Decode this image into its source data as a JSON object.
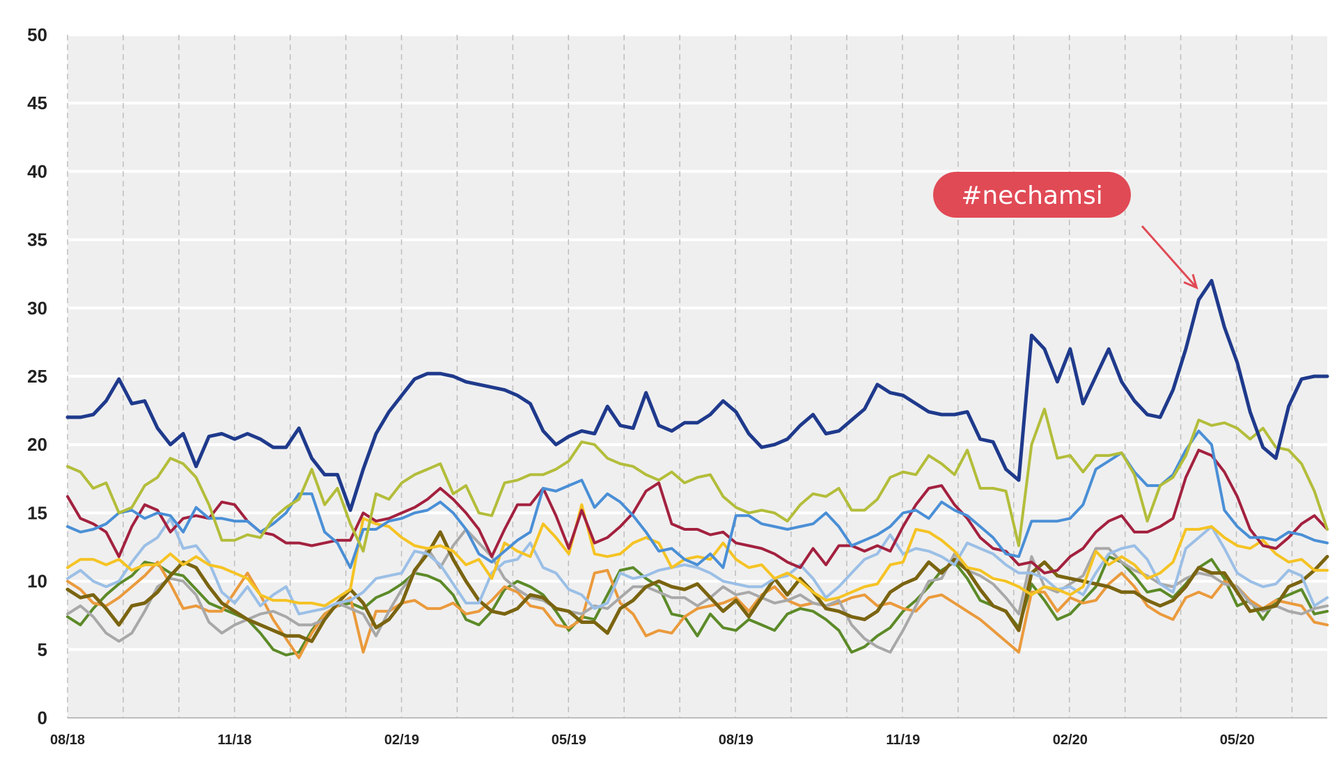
{
  "chart_data": {
    "type": "line",
    "title": "",
    "xlabel": "",
    "ylabel": "",
    "ylim": [
      0,
      50
    ],
    "yticks": [
      "0",
      "5",
      "10",
      "15",
      "20",
      "25",
      "30",
      "35",
      "40",
      "45",
      "50"
    ],
    "xticks": [
      {
        "index": 0,
        "label": "08/18"
      },
      {
        "index": 13,
        "label": "11/18"
      },
      {
        "index": 26,
        "label": "02/19"
      },
      {
        "index": 39,
        "label": "05/19"
      },
      {
        "index": 52,
        "label": "08/19"
      },
      {
        "index": 65,
        "label": "11/19"
      },
      {
        "index": 78,
        "label": "02/20"
      },
      {
        "index": 91,
        "label": "05/20"
      }
    ],
    "grid": {
      "horizontal": "solid",
      "vertical": "dashed",
      "vertical_every": 4.33
    },
    "legend": "none",
    "background": "#efefef",
    "annotation": {
      "text": "#nechamsi",
      "series": "navy",
      "index": 88,
      "value": 32,
      "color": "#e04a55"
    },
    "series": [
      {
        "key": "navy",
        "color": "#1f3a8c",
        "width": 5,
        "values": [
          22.0,
          22.0,
          22.2,
          23.2,
          24.8,
          23.0,
          23.2,
          21.2,
          20.0,
          20.8,
          18.4,
          20.6,
          20.8,
          20.4,
          20.8,
          20.4,
          19.8,
          19.8,
          21.2,
          19.0,
          17.8,
          17.8,
          15.2,
          18.2,
          20.8,
          22.4,
          23.6,
          24.8,
          25.2,
          25.2,
          25.0,
          24.6,
          24.4,
          24.2,
          24.0,
          23.6,
          23.0,
          21.0,
          20.0,
          20.6,
          21.0,
          20.8,
          22.8,
          21.4,
          21.2,
          23.8,
          21.4,
          21.0,
          21.6,
          21.6,
          22.2,
          23.2,
          22.4,
          20.8,
          19.8,
          20.0,
          20.4,
          21.4,
          22.2,
          20.8,
          21.0,
          21.8,
          22.6,
          24.4,
          23.8,
          23.6,
          23.0,
          22.4,
          22.2,
          22.2,
          22.4,
          20.4,
          20.2,
          18.2,
          17.4,
          28.0,
          27.0,
          24.6,
          27.0,
          23.0,
          25.0,
          27.0,
          24.6,
          23.2,
          22.2,
          22.0,
          24.0,
          27.0,
          30.6,
          32.0,
          28.6,
          26.0,
          22.4,
          19.8,
          19.0,
          22.8,
          24.8,
          25.0,
          25.0
        ]
      },
      {
        "key": "olive-green",
        "color": "#b3bd3a",
        "width": 4,
        "values": [
          18.4,
          18.0,
          16.8,
          17.2,
          15.0,
          15.4,
          17.0,
          17.6,
          19.0,
          18.6,
          17.6,
          15.6,
          13.0,
          13.0,
          13.4,
          13.2,
          14.6,
          15.4,
          16.0,
          18.2,
          15.6,
          16.8,
          14.2,
          12.2,
          16.4,
          16.0,
          17.2,
          17.8,
          18.2,
          18.6,
          16.4,
          17.0,
          15.0,
          14.8,
          17.2,
          17.4,
          17.8,
          17.8,
          18.2,
          18.8,
          20.2,
          20.0,
          19.0,
          18.6,
          18.4,
          17.8,
          17.4,
          18.0,
          17.2,
          17.6,
          17.8,
          16.2,
          15.4,
          15.0,
          15.2,
          15.0,
          14.4,
          15.6,
          16.4,
          16.2,
          16.8,
          15.2,
          15.2,
          16.0,
          17.6,
          18.0,
          17.8,
          19.2,
          18.6,
          17.8,
          19.6,
          16.8,
          16.8,
          16.6,
          12.6,
          20.0,
          22.6,
          19.0,
          19.2,
          18.0,
          19.2,
          19.2,
          19.4,
          17.8,
          14.4,
          17.0,
          17.6,
          19.2,
          21.8,
          21.4,
          21.6,
          21.2,
          20.4,
          21.2,
          19.8,
          19.6,
          18.6,
          16.6,
          13.8
        ]
      },
      {
        "key": "blue",
        "color": "#4a8fd6",
        "width": 4,
        "values": [
          14.0,
          13.6,
          13.8,
          14.2,
          15.0,
          15.2,
          14.6,
          15.0,
          14.8,
          13.6,
          15.4,
          14.6,
          14.6,
          14.4,
          14.4,
          13.6,
          14.2,
          15.0,
          16.4,
          16.4,
          13.6,
          12.8,
          11.0,
          13.8,
          13.8,
          14.4,
          14.6,
          15.0,
          15.2,
          15.8,
          15.0,
          13.8,
          12.0,
          11.4,
          12.2,
          13.0,
          13.6,
          16.8,
          16.6,
          17.0,
          17.4,
          15.4,
          16.4,
          15.8,
          14.8,
          13.6,
          12.2,
          12.4,
          11.6,
          11.2,
          12.0,
          11.0,
          14.8,
          14.8,
          14.2,
          14.0,
          13.8,
          14.0,
          14.2,
          15.0,
          14.0,
          12.6,
          13.0,
          13.4,
          14.0,
          15.0,
          15.2,
          14.6,
          15.8,
          15.2,
          14.8,
          14.0,
          13.2,
          12.0,
          11.8,
          14.4,
          14.4,
          14.4,
          14.6,
          15.6,
          18.2,
          18.8,
          19.4,
          18.0,
          17.0,
          17.0,
          17.8,
          19.6,
          21.0,
          20.0,
          15.2,
          14.0,
          13.2,
          13.2,
          13.0,
          13.6,
          13.4,
          13.0,
          12.8
        ]
      },
      {
        "key": "crimson",
        "color": "#a3213f",
        "width": 4,
        "values": [
          16.2,
          14.6,
          14.2,
          13.6,
          11.8,
          14.0,
          15.6,
          15.2,
          13.6,
          14.6,
          14.8,
          14.6,
          15.8,
          15.6,
          14.4,
          13.6,
          13.4,
          12.8,
          12.8,
          12.6,
          12.8,
          13.0,
          13.0,
          15.0,
          14.4,
          14.6,
          15.0,
          15.4,
          16.0,
          16.8,
          16.0,
          15.0,
          13.8,
          11.8,
          13.8,
          15.6,
          15.6,
          16.8,
          14.8,
          12.4,
          15.2,
          12.8,
          13.2,
          14.0,
          15.0,
          16.6,
          17.2,
          14.2,
          13.8,
          13.8,
          13.4,
          13.6,
          12.8,
          12.6,
          12.4,
          12.0,
          11.4,
          11.0,
          12.4,
          11.2,
          12.6,
          12.6,
          12.2,
          12.6,
          12.2,
          14.0,
          15.6,
          16.8,
          17.0,
          15.6,
          14.6,
          13.2,
          12.4,
          12.2,
          11.2,
          11.4,
          10.6,
          10.8,
          11.8,
          12.4,
          13.6,
          14.4,
          14.8,
          13.6,
          13.6,
          14.0,
          14.6,
          17.6,
          19.6,
          19.2,
          18.0,
          16.2,
          13.8,
          12.6,
          12.4,
          13.2,
          14.2,
          14.8,
          13.8
        ]
      },
      {
        "key": "yellow",
        "color": "#f5c324",
        "width": 4,
        "values": [
          11.0,
          11.6,
          11.6,
          11.2,
          11.6,
          10.8,
          11.2,
          11.2,
          12.0,
          11.2,
          11.8,
          11.2,
          11.0,
          10.6,
          10.2,
          9.0,
          8.6,
          8.6,
          8.4,
          8.4,
          8.2,
          8.8,
          9.4,
          14.6,
          14.2,
          14.0,
          13.2,
          12.6,
          12.4,
          12.6,
          12.2,
          11.2,
          11.6,
          10.2,
          12.8,
          12.2,
          11.8,
          14.2,
          13.2,
          12.0,
          15.6,
          12.0,
          11.8,
          12.0,
          12.8,
          13.2,
          12.8,
          11.0,
          11.6,
          11.8,
          11.6,
          12.8,
          11.6,
          11.0,
          11.2,
          10.2,
          10.6,
          10.0,
          9.2,
          8.6,
          8.8,
          9.2,
          9.6,
          9.8,
          11.2,
          11.4,
          13.8,
          13.6,
          13.0,
          12.2,
          11.0,
          10.8,
          10.2,
          10.0,
          9.6,
          9.0,
          9.6,
          9.4,
          9.0,
          9.6,
          12.2,
          11.2,
          11.8,
          11.2,
          10.2,
          10.6,
          11.4,
          13.8,
          13.8,
          14.0,
          13.2,
          12.6,
          12.4,
          13.0,
          12.0,
          11.4,
          11.6,
          10.8,
          10.8
        ]
      },
      {
        "key": "light-blue",
        "color": "#9bbfe6",
        "width": 4,
        "values": [
          10.2,
          10.8,
          10.0,
          9.6,
          10.0,
          11.4,
          12.6,
          13.2,
          14.6,
          12.4,
          12.6,
          11.4,
          9.2,
          8.4,
          9.6,
          8.2,
          9.0,
          9.6,
          7.6,
          7.8,
          8.0,
          8.4,
          8.6,
          9.2,
          10.2,
          10.4,
          10.6,
          12.2,
          12.0,
          11.2,
          9.8,
          8.4,
          8.4,
          10.6,
          11.4,
          11.6,
          12.8,
          11.0,
          10.6,
          9.4,
          9.0,
          8.0,
          8.4,
          10.6,
          10.2,
          10.4,
          10.8,
          11.0,
          11.2,
          11.0,
          10.6,
          10.0,
          9.8,
          9.6,
          9.6,
          10.2,
          10.4,
          11.2,
          10.2,
          8.8,
          9.6,
          10.6,
          11.6,
          12.0,
          13.4,
          12.0,
          12.4,
          12.2,
          11.8,
          11.2,
          12.8,
          12.4,
          12.0,
          11.2,
          10.6,
          10.6,
          10.2,
          9.4,
          9.6,
          9.0,
          10.6,
          12.0,
          12.4,
          12.6,
          11.6,
          9.8,
          9.2,
          12.4,
          13.2,
          14.0,
          12.4,
          10.6,
          10.0,
          9.6,
          9.8,
          10.8,
          10.4,
          8.2,
          8.8
        ]
      },
      {
        "key": "brown",
        "color": "#7a6410",
        "width": 5,
        "values": [
          9.4,
          8.8,
          9.0,
          8.0,
          6.8,
          8.2,
          8.4,
          9.2,
          10.4,
          11.4,
          11.0,
          9.6,
          8.4,
          7.8,
          7.2,
          6.8,
          6.4,
          6.0,
          6.0,
          5.6,
          7.2,
          8.4,
          9.4,
          8.4,
          6.6,
          7.2,
          8.4,
          10.8,
          12.0,
          13.6,
          11.6,
          10.0,
          8.6,
          7.8,
          7.6,
          8.0,
          9.0,
          8.8,
          8.0,
          7.8,
          7.0,
          7.0,
          6.2,
          8.0,
          8.6,
          9.6,
          10.0,
          9.6,
          9.4,
          9.8,
          8.8,
          7.8,
          8.6,
          7.4,
          8.8,
          10.2,
          9.0,
          10.2,
          9.2,
          8.0,
          7.8,
          7.4,
          7.2,
          7.8,
          9.2,
          9.8,
          10.2,
          11.4,
          10.6,
          11.6,
          10.8,
          9.4,
          8.2,
          7.8,
          6.4,
          10.6,
          11.4,
          10.4,
          10.2,
          10.0,
          9.8,
          9.6,
          9.2,
          9.2,
          8.6,
          8.2,
          8.6,
          9.6,
          11.0,
          10.6,
          10.6,
          9.2,
          7.8,
          8.0,
          8.2,
          9.6,
          10.0,
          10.8,
          11.8
        ]
      },
      {
        "key": "gray",
        "color": "#a8a8a8",
        "width": 4,
        "values": [
          7.6,
          8.2,
          7.4,
          6.2,
          5.6,
          6.2,
          7.8,
          9.6,
          10.2,
          10.0,
          9.0,
          7.0,
          6.2,
          6.8,
          7.2,
          7.6,
          7.8,
          7.4,
          6.8,
          6.8,
          7.2,
          8.4,
          8.0,
          7.6,
          6.0,
          7.8,
          9.4,
          10.6,
          12.4,
          11.0,
          12.6,
          13.8,
          12.8,
          11.8,
          10.2,
          9.4,
          8.8,
          8.6,
          8.0,
          7.8,
          7.6,
          8.2,
          8.0,
          8.8,
          9.6,
          9.6,
          9.2,
          8.8,
          8.8,
          8.2,
          8.8,
          9.6,
          9.0,
          9.2,
          8.8,
          8.4,
          8.6,
          9.0,
          8.4,
          8.2,
          8.6,
          6.8,
          5.8,
          5.2,
          4.8,
          6.4,
          8.2,
          10.0,
          10.2,
          12.0,
          10.8,
          10.4,
          9.8,
          8.8,
          7.6,
          11.8,
          9.6,
          9.2,
          9.8,
          10.4,
          12.4,
          12.4,
          11.4,
          10.8,
          10.4,
          9.8,
          9.6,
          10.2,
          10.6,
          10.4,
          9.8,
          9.6,
          8.4,
          7.8,
          8.2,
          7.8,
          7.6,
          8.0,
          8.2
        ]
      },
      {
        "key": "orange",
        "color": "#ea9a3c",
        "width": 4,
        "values": [
          10.0,
          9.4,
          8.4,
          8.2,
          8.8,
          9.6,
          10.4,
          11.4,
          9.8,
          8.0,
          8.2,
          7.8,
          7.8,
          9.2,
          10.6,
          9.0,
          7.2,
          5.8,
          4.4,
          6.2,
          7.6,
          8.2,
          8.8,
          4.8,
          7.8,
          7.8,
          8.4,
          8.6,
          8.0,
          8.0,
          8.4,
          7.6,
          7.8,
          8.6,
          9.6,
          9.2,
          8.2,
          8.0,
          6.8,
          6.6,
          7.2,
          10.6,
          10.8,
          8.4,
          7.6,
          6.0,
          6.4,
          6.2,
          7.4,
          8.0,
          8.2,
          8.4,
          8.8,
          7.8,
          9.0,
          9.6,
          8.6,
          8.2,
          8.4,
          8.2,
          8.4,
          8.8,
          9.0,
          8.2,
          8.4,
          8.0,
          7.8,
          8.8,
          9.0,
          8.4,
          7.8,
          7.2,
          6.4,
          5.6,
          4.8,
          9.2,
          9.2,
          7.8,
          8.8,
          8.4,
          8.6,
          9.8,
          10.6,
          9.6,
          8.2,
          7.6,
          7.2,
          8.8,
          9.2,
          8.8,
          10.0,
          9.6,
          8.6,
          8.0,
          8.6,
          8.4,
          8.2,
          7.0,
          6.8
        ]
      },
      {
        "key": "green",
        "color": "#5c8a28",
        "width": 4,
        "values": [
          7.4,
          6.8,
          8.0,
          9.0,
          9.8,
          10.4,
          11.4,
          11.2,
          10.6,
          10.4,
          9.4,
          8.4,
          8.0,
          7.6,
          7.2,
          6.2,
          5.0,
          4.6,
          4.8,
          6.4,
          7.6,
          8.2,
          8.4,
          8.0,
          8.8,
          9.2,
          9.8,
          10.6,
          10.4,
          10.0,
          9.0,
          7.2,
          6.8,
          7.8,
          9.4,
          10.0,
          9.6,
          9.0,
          7.8,
          6.4,
          7.4,
          7.2,
          9.0,
          10.8,
          11.0,
          10.2,
          9.6,
          7.6,
          7.4,
          6.0,
          7.6,
          6.6,
          6.4,
          7.2,
          6.8,
          6.4,
          7.6,
          8.0,
          7.8,
          7.2,
          6.4,
          4.8,
          5.2,
          6.0,
          6.6,
          7.8,
          8.6,
          9.6,
          10.8,
          11.4,
          10.2,
          8.6,
          8.2,
          7.8,
          6.6,
          9.8,
          8.6,
          7.2,
          7.6,
          8.6,
          9.6,
          11.8,
          11.4,
          10.4,
          9.2,
          9.4,
          8.8,
          9.8,
          11.0,
          11.6,
          10.2,
          8.2,
          8.6,
          7.2,
          8.6,
          9.0,
          9.4,
          7.6,
          7.8
        ]
      }
    ]
  }
}
